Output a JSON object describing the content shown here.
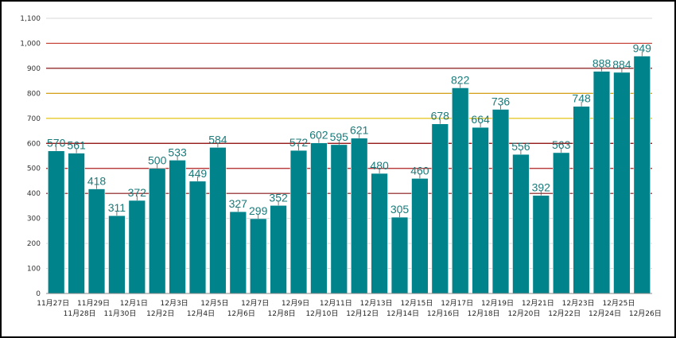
{
  "chart_data": {
    "type": "bar",
    "ylim": [
      0,
      1100
    ],
    "yticks": [
      0,
      100,
      200,
      300,
      400,
      500,
      600,
      700,
      800,
      900,
      1000,
      1100
    ],
    "ytick_labels": [
      "0",
      "100",
      "200",
      "300",
      "400",
      "500",
      "600",
      "700",
      "800",
      "900",
      "1,000",
      "1,100"
    ],
    "grid": true,
    "bar_color": "#00838a",
    "label_color": "#1a7a7a",
    "reference_lines": [
      {
        "value": 400,
        "color": "#8b1a1a"
      },
      {
        "value": 500,
        "color": "#b22222"
      },
      {
        "value": 600,
        "color": "#8b0000"
      },
      {
        "value": 700,
        "color": "#e6c200"
      },
      {
        "value": 800,
        "color": "#d4a017"
      },
      {
        "value": 900,
        "color": "#8b1a1a"
      },
      {
        "value": 1000,
        "color": "#c0392b"
      }
    ],
    "categories": [
      "11月27日",
      "11月28日",
      "11月29日",
      "11月30日",
      "12月1日",
      "12月2日",
      "12月3日",
      "12月4日",
      "12月5日",
      "12月6日",
      "12月7日",
      "12月8日",
      "12月9日",
      "12月10日",
      "12月11日",
      "12月12日",
      "12月13日",
      "12月14日",
      "12月15日",
      "12月16日",
      "12月17日",
      "12月18日",
      "12月19日",
      "12月20日",
      "12月21日",
      "12月22日",
      "12月23日",
      "12月24日",
      "12月25日",
      "12月26日"
    ],
    "values": [
      570,
      561,
      418,
      311,
      372,
      500,
      533,
      449,
      584,
      327,
      299,
      352,
      572,
      602,
      595,
      621,
      480,
      305,
      460,
      678,
      822,
      664,
      736,
      556,
      392,
      563,
      748,
      888,
      884,
      949
    ],
    "title": "",
    "xlabel": "",
    "ylabel": ""
  }
}
